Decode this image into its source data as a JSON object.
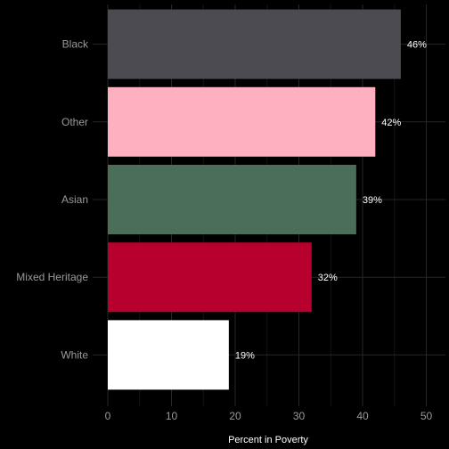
{
  "chart_data": {
    "type": "bar",
    "orientation": "horizontal",
    "categories": [
      "Black",
      "Other",
      "Asian",
      "Mixed Heritage",
      "White"
    ],
    "values": [
      46,
      42,
      39,
      32,
      19
    ],
    "data_labels": [
      "46%",
      "42%",
      "39%",
      "32%",
      "19%"
    ],
    "colors": [
      "#4d4b52",
      "#ffb0c0",
      "#4a6e5a",
      "#b8002e",
      "#ffffff"
    ],
    "xlabel": "Percent in Poverty",
    "ylabel": "",
    "xlim": [
      0,
      50
    ],
    "x_ticks": [
      0,
      10,
      20,
      30,
      40,
      50
    ],
    "x_tick_labels": [
      "0",
      "10",
      "20",
      "30",
      "40",
      "50"
    ],
    "grid": true,
    "legend": "none",
    "background": "#000000"
  }
}
